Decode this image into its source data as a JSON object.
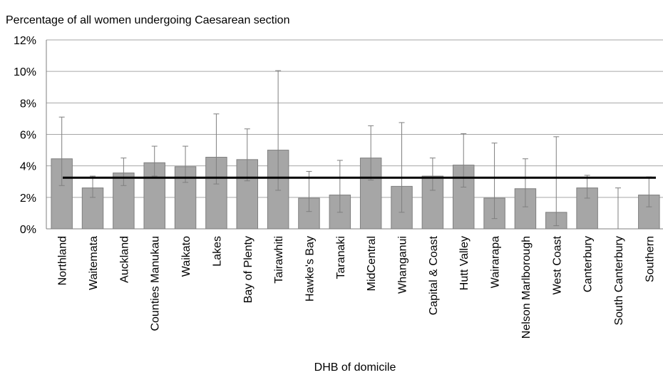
{
  "chart_data": {
    "type": "bar",
    "title": "Percentage of all women undergoing Caesarean section",
    "xlabel": "DHB of domicile",
    "ylabel": "",
    "ylim": [
      0,
      12
    ],
    "yticks": [
      "0%",
      "2%",
      "4%",
      "6%",
      "8%",
      "10%",
      "12%"
    ],
    "grid": true,
    "categories": [
      "Northland",
      "Waitemata",
      "Auckland",
      "Counties Manukau",
      "Waikato",
      "Lakes",
      "Bay of Plenty",
      "Tairawhiti",
      "Hawke's Bay",
      "Taranaki",
      "MidCentral",
      "Whanganui",
      "Capital & Coast",
      "Hutt Valley",
      "Wairarapa",
      "Nelson Marlborough",
      "West Coast",
      "Canterbury",
      "South Canterbury",
      "Southern"
    ],
    "values": [
      4.45,
      2.6,
      3.55,
      4.2,
      3.95,
      4.55,
      4.4,
      5.0,
      1.95,
      2.15,
      4.5,
      2.7,
      3.35,
      4.05,
      1.95,
      2.55,
      1.05,
      2.6,
      0.0,
      2.15
    ],
    "error_low": [
      2.75,
      2.0,
      2.75,
      3.35,
      2.95,
      2.85,
      3.05,
      2.45,
      1.1,
      1.05,
      3.1,
      1.05,
      2.45,
      2.65,
      0.65,
      1.4,
      0.2,
      1.95,
      0.0,
      1.4
    ],
    "error_high": [
      7.1,
      3.35,
      4.5,
      5.25,
      5.25,
      7.3,
      6.35,
      10.05,
      3.65,
      4.35,
      6.55,
      6.75,
      4.5,
      6.05,
      5.45,
      4.45,
      5.85,
      3.4,
      2.6,
      3.3
    ],
    "reference_line": 3.25,
    "colors": {
      "bar": "#a6a6a6",
      "bar_border": "#7f7f7f",
      "grid": "#a6a6a6",
      "reference": "#000000",
      "error": "#7f7f7f"
    }
  }
}
